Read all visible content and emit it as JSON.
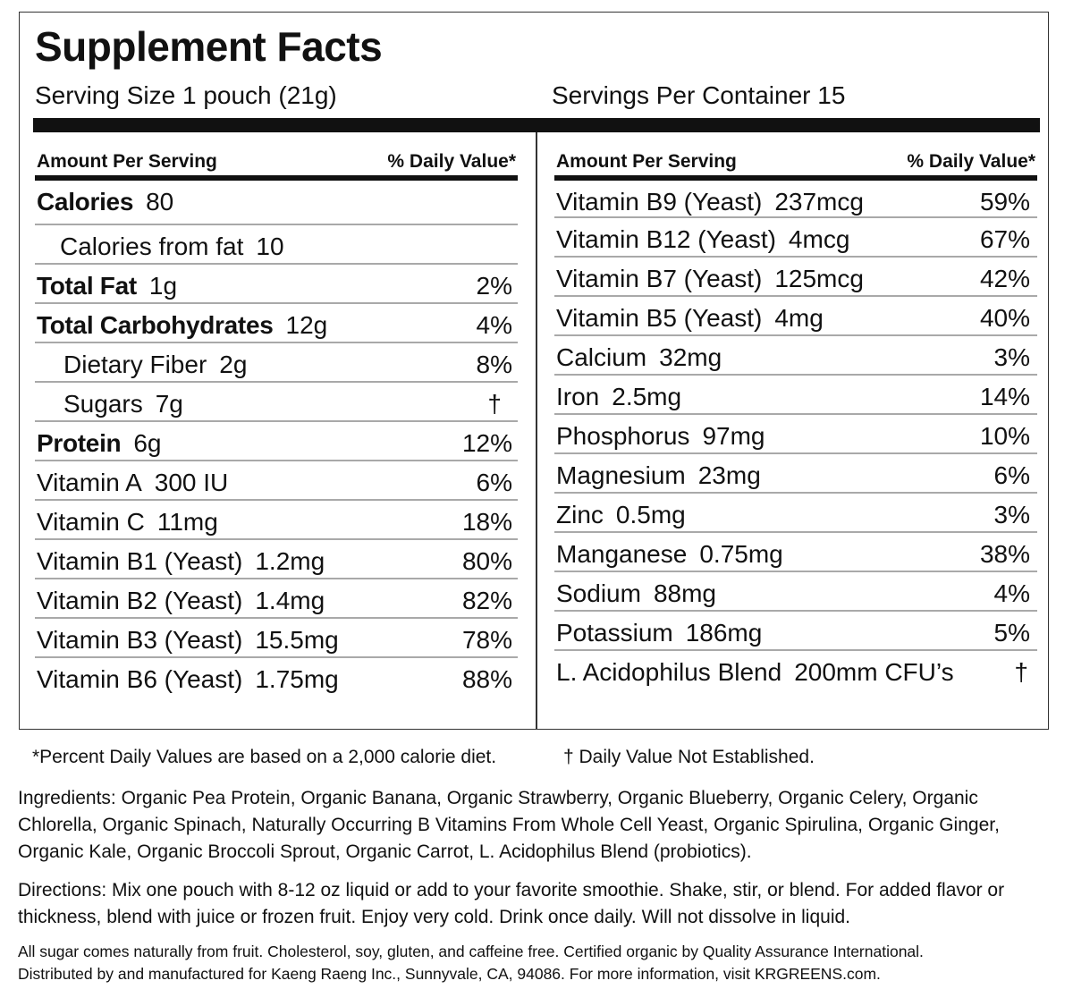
{
  "title": "Supplement Facts",
  "serving": {
    "size_label": "Serving Size 1 pouch (21g)",
    "per_container_label": "Servings Per Container  15"
  },
  "column_headers": {
    "amount": "Amount Per Serving",
    "daily_value": "% Daily Value*"
  },
  "left_rows": [
    {
      "name": "Calories",
      "amount": "80",
      "dv": "",
      "bold": true
    },
    {
      "name": "Calories from fat",
      "amount": "10",
      "dv": "",
      "bold": false
    },
    {
      "name": "Total Fat",
      "amount": "1g",
      "dv": "2%",
      "bold": true
    },
    {
      "name": "Total Carbohydrates",
      "amount": "12g",
      "dv": "4%",
      "bold": true
    },
    {
      "name": "Dietary Fiber",
      "amount": "2g",
      "dv": "8%",
      "bold": false
    },
    {
      "name": "Sugars",
      "amount": "7g",
      "dv": "†",
      "bold": false
    },
    {
      "name": "Protein",
      "amount": "6g",
      "dv": "12%",
      "bold": true
    },
    {
      "name": "Vitamin A",
      "amount": "300 IU",
      "dv": "6%",
      "bold": false
    },
    {
      "name": "Vitamin C",
      "amount": "11mg",
      "dv": "18%",
      "bold": false
    },
    {
      "name": "Vitamin B1 (Yeast)",
      "amount": "1.2mg",
      "dv": "80%",
      "bold": false
    },
    {
      "name": "Vitamin B2 (Yeast)",
      "amount": "1.4mg",
      "dv": "82%",
      "bold": false
    },
    {
      "name": "Vitamin B3 (Yeast)",
      "amount": "15.5mg",
      "dv": "78%",
      "bold": false
    },
    {
      "name": "Vitamin B6 (Yeast)",
      "amount": "1.75mg",
      "dv": "88%",
      "bold": false
    }
  ],
  "right_rows": [
    {
      "name": "Vitamin B9 (Yeast)",
      "amount": "237mcg",
      "dv": "59%"
    },
    {
      "name": "Vitamin B12 (Yeast)",
      "amount": "4mcg",
      "dv": "67%"
    },
    {
      "name": "Vitamin B7 (Yeast)",
      "amount": "125mcg",
      "dv": "42%"
    },
    {
      "name": "Vitamin B5 (Yeast)",
      "amount": "4mg",
      "dv": "40%"
    },
    {
      "name": "Calcium",
      "amount": "32mg",
      "dv": "3%"
    },
    {
      "name": "Iron",
      "amount": "2.5mg",
      "dv": "14%"
    },
    {
      "name": "Phosphorus",
      "amount": "97mg",
      "dv": "10%"
    },
    {
      "name": "Magnesium",
      "amount": "23mg",
      "dv": "6%"
    },
    {
      "name": "Zinc",
      "amount": "0.5mg",
      "dv": "3%"
    },
    {
      "name": "Manganese",
      "amount": "0.75mg",
      "dv": "38%"
    },
    {
      "name": "Sodium",
      "amount": "88mg",
      "dv": "4%"
    },
    {
      "name": "Potassium",
      "amount": "186mg",
      "dv": "5%"
    },
    {
      "name": "L. Acidophilus Blend",
      "amount": "200mm CFU’s",
      "dv": "†"
    }
  ],
  "footnotes": {
    "daily_value_basis": "*Percent Daily Values are based on a 2,000 calorie diet.",
    "not_established": "† Daily Value Not Established."
  },
  "ingredients": {
    "label": "Ingredients:",
    "text": "Organic Pea Protein, Organic Banana, Organic Strawberry, Organic Blueberry, Organic Celery, Organic Chlorella, Organic Spinach, Naturally Occurring B Vitamins From Whole Cell Yeast, Organic Spirulina, Organic Ginger, Organic Kale, Organic Broccoli Sprout, Organic Carrot, L. Acidophilus Blend (probiotics)."
  },
  "directions": {
    "label": "Directions:",
    "text": "Mix one pouch with 8-12 oz liquid or add to your favorite smoothie. Shake, stir, or blend. For added flavor or thickness, blend with juice or frozen fruit. Enjoy very cold. Drink once daily.  Will not dissolve in liquid."
  },
  "fine_print": {
    "line1": "All sugar comes naturally from fruit.  Cholesterol, soy, gluten, and caffeine free.  Certified organic by Quality Assurance International.",
    "line2": "Distributed by and manufactured for Kaeng Raeng Inc., Sunnyvale, CA, 94086.  For more information, visit KRGREENS.com."
  }
}
